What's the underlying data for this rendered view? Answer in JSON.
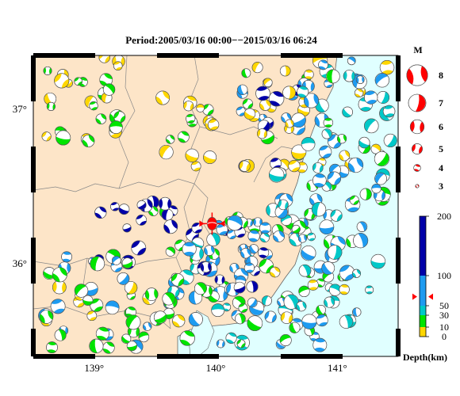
{
  "title": "Period:2005/03/16 00:00−−2015/03/16 06:24",
  "axes": {
    "lon_ticks": [
      {
        "value": 139,
        "label": "139°"
      },
      {
        "value": 140,
        "label": "140°"
      },
      {
        "value": 141,
        "label": "141°"
      }
    ],
    "lat_ticks": [
      {
        "value": 37,
        "label": "37°"
      },
      {
        "value": 36,
        "label": "36°"
      }
    ],
    "lon_range": [
      138.5,
      141.5
    ],
    "lat_range": [
      35.4,
      37.35
    ]
  },
  "magnitude_legend": {
    "heading": "M",
    "items": [
      {
        "label": "8",
        "magnitude": 8
      },
      {
        "label": "7",
        "magnitude": 7
      },
      {
        "label": "6",
        "magnitude": 6
      },
      {
        "label": "5",
        "magnitude": 5
      },
      {
        "label": "4",
        "magnitude": 4
      },
      {
        "label": "3",
        "magnitude": 3
      }
    ],
    "color": "#ff0000"
  },
  "depth_scale": {
    "title": "Depth(km)",
    "range": [
      0,
      200
    ],
    "ticks": [
      {
        "value": 200,
        "label": "200"
      },
      {
        "value": 100,
        "label": "100"
      },
      {
        "value": 50,
        "label": "50"
      },
      {
        "value": 30,
        "label": "30"
      },
      {
        "value": 10,
        "label": "10"
      },
      {
        "value": 0,
        "label": "0"
      }
    ],
    "bands": [
      {
        "from": 0,
        "to": 10,
        "color": "#ffd700"
      },
      {
        "from": 10,
        "to": 30,
        "color": "#00e400"
      },
      {
        "from": 30,
        "to": 50,
        "color": "#00c8c8"
      },
      {
        "from": 50,
        "to": 100,
        "color": "#1e9bf0"
      },
      {
        "from": 100,
        "to": 200,
        "color": "#0000a8"
      }
    ],
    "marker_depth": 65
  },
  "colors": {
    "land": "#fde5c8",
    "sea": "#e0ffff",
    "border": "#888888",
    "coast": "#666666",
    "selected_event": "#ff0000"
  },
  "selected_event": {
    "lon": 139.97,
    "lat": 36.26
  },
  "clusters": [
    {
      "lon": [
        138.55,
        139.25
      ],
      "lat": [
        36.75,
        37.35
      ],
      "n": 30,
      "depths": [
        5,
        20
      ]
    },
    {
      "lon": [
        139.55,
        140.0
      ],
      "lat": [
        36.6,
        37.1
      ],
      "n": 16,
      "depths": [
        5,
        5,
        20
      ]
    },
    {
      "lon": [
        140.2,
        140.75
      ],
      "lat": [
        36.6,
        37.3
      ],
      "n": 34,
      "depths": [
        5,
        5,
        20,
        70,
        150
      ]
    },
    {
      "lon": [
        140.6,
        141.45
      ],
      "lat": [
        36.5,
        37.35
      ],
      "n": 60,
      "depths": [
        40,
        70,
        20,
        40,
        5
      ]
    },
    {
      "lon": [
        140.45,
        141.0
      ],
      "lat": [
        36.15,
        36.6
      ],
      "n": 26,
      "depths": [
        70,
        40,
        20
      ]
    },
    {
      "lon": [
        140.75,
        141.45
      ],
      "lat": [
        35.8,
        36.5
      ],
      "n": 26,
      "depths": [
        40,
        20,
        70
      ]
    },
    {
      "lon": [
        139.0,
        139.7
      ],
      "lat": [
        36.0,
        36.4
      ],
      "n": 18,
      "depths": [
        150,
        150,
        20
      ]
    },
    {
      "lon": [
        139.6,
        140.45
      ],
      "lat": [
        35.7,
        36.3
      ],
      "n": 70,
      "depths": [
        70,
        70,
        70,
        40,
        150,
        20
      ]
    },
    {
      "lon": [
        138.6,
        139.9
      ],
      "lat": [
        35.45,
        35.85
      ],
      "n": 42,
      "depths": [
        20,
        20,
        70,
        5
      ]
    },
    {
      "lon": [
        140.0,
        141.0
      ],
      "lat": [
        35.45,
        35.8
      ],
      "n": 26,
      "depths": [
        70,
        20,
        40
      ]
    },
    {
      "lon": [
        140.4,
        141.2
      ],
      "lat": [
        35.6,
        36.0
      ],
      "n": 22,
      "depths": [
        20,
        40,
        70,
        5
      ]
    },
    {
      "lon": [
        138.5,
        139.3
      ],
      "lat": [
        35.9,
        36.15
      ],
      "n": 10,
      "depths": [
        70,
        150,
        20
      ]
    }
  ]
}
